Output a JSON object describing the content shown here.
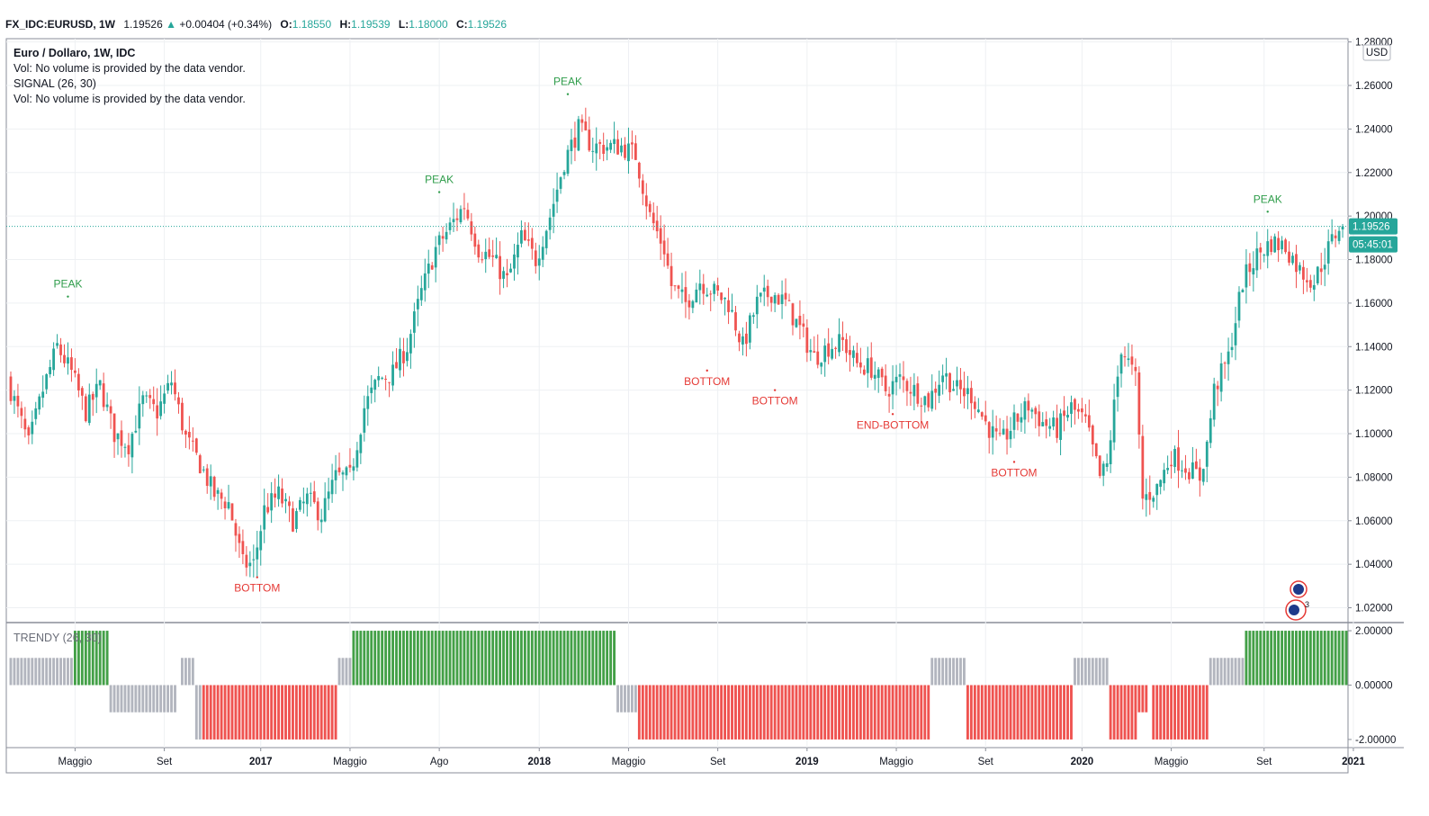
{
  "header": {
    "symbol": "FX_IDC:EURUSD, 1W",
    "last": "1.19526",
    "change": "+0.00404 (+0.34%)",
    "open_label": "O:",
    "open": "1.18550",
    "high_label": "H:",
    "high": "1.19539",
    "low_label": "L:",
    "low": "1.18000",
    "close_label": "C:",
    "close": "1.19526"
  },
  "legend": {
    "title": "Euro / Dollaro, 1W, IDC",
    "vol1": "Vol: No volume is provided by the data vendor.",
    "signal": "SIGNAL (26, 30)",
    "vol2": "Vol: No volume is provided by the data vendor.",
    "trendy": "TRENDY (26, 30)"
  },
  "price_scale": {
    "currency": "USD",
    "last_price_tag": "1.19526",
    "countdown_tag": "05:45:01"
  },
  "colors": {
    "up": "#26a69a",
    "down": "#ef5350",
    "trend_up": "#43a047",
    "trend_down": "#ef5350",
    "neutral": "#b2b5be",
    "peak": "#2e9c4a",
    "bottom": "#e53935"
  },
  "chart_data": [
    {
      "type": "candlestick",
      "title": "Euro / Dollaro, 1W, IDC",
      "ylim": [
        1.0132,
        1.2815
      ],
      "y_ticks": [
        "1.28000",
        "1.26000",
        "1.24000",
        "1.22000",
        "1.20000",
        "1.18000",
        "1.16000",
        "1.14000",
        "1.12000",
        "1.10000",
        "1.08000",
        "1.06000",
        "1.04000",
        "1.02000"
      ],
      "x_ticks": [
        "Maggio",
        "Set",
        "2017",
        "Maggio",
        "Ago",
        "2018",
        "Maggio",
        "Set",
        "2019",
        "Maggio",
        "Set",
        "2020",
        "Maggio",
        "Set",
        "2021"
      ],
      "last_price": 1.19526,
      "n_weeks": 282,
      "anchors": [
        [
          0,
          1.125
        ],
        [
          6,
          1.095
        ],
        [
          10,
          1.12
        ],
        [
          14,
          1.14
        ],
        [
          18,
          1.128
        ],
        [
          22,
          1.11
        ],
        [
          26,
          1.122
        ],
        [
          30,
          1.1
        ],
        [
          34,
          1.095
        ],
        [
          38,
          1.115
        ],
        [
          42,
          1.11
        ],
        [
          46,
          1.124
        ],
        [
          50,
          1.098
        ],
        [
          54,
          1.086
        ],
        [
          58,
          1.072
        ],
        [
          62,
          1.068
        ],
        [
          66,
          1.04
        ],
        [
          69,
          1.04
        ],
        [
          72,
          1.065
        ],
        [
          76,
          1.072
        ],
        [
          80,
          1.06
        ],
        [
          84,
          1.07
        ],
        [
          88,
          1.063
        ],
        [
          92,
          1.08
        ],
        [
          96,
          1.08
        ],
        [
          100,
          1.112
        ],
        [
          104,
          1.125
        ],
        [
          108,
          1.128
        ],
        [
          112,
          1.14
        ],
        [
          116,
          1.165
        ],
        [
          120,
          1.185
        ],
        [
          124,
          1.195
        ],
        [
          128,
          1.205
        ],
        [
          132,
          1.185
        ],
        [
          136,
          1.18
        ],
        [
          140,
          1.17
        ],
        [
          144,
          1.19
        ],
        [
          148,
          1.18
        ],
        [
          152,
          1.2
        ],
        [
          156,
          1.225
        ],
        [
          160,
          1.24
        ],
        [
          164,
          1.232
        ],
        [
          168,
          1.232
        ],
        [
          172,
          1.232
        ],
        [
          176,
          1.228
        ],
        [
          180,
          1.2
        ],
        [
          184,
          1.185
        ],
        [
          186,
          1.168
        ],
        [
          190,
          1.16
        ],
        [
          194,
          1.17
        ],
        [
          198,
          1.165
        ],
        [
          202,
          1.16
        ],
        [
          206,
          1.14
        ],
        [
          210,
          1.16
        ],
        [
          214,
          1.165
        ],
        [
          218,
          1.16
        ],
        [
          222,
          1.148
        ],
        [
          226,
          1.135
        ],
        [
          230,
          1.14
        ],
        [
          234,
          1.142
        ],
        [
          238,
          1.132
        ],
        [
          242,
          1.13
        ],
        [
          246,
          1.12
        ],
        [
          250,
          1.125
        ],
        [
          254,
          1.12
        ],
        [
          258,
          1.115
        ],
        [
          262,
          1.128
        ],
        [
          266,
          1.12
        ],
        [
          270,
          1.118
        ],
        [
          274,
          1.105
        ],
        [
          278,
          1.095
        ],
        [
          282,
          1.105
        ],
        [
          286,
          1.113
        ],
        [
          290,
          1.105
        ],
        [
          294,
          1.102
        ],
        [
          298,
          1.112
        ],
        [
          302,
          1.105
        ],
        [
          306,
          1.08
        ],
        [
          308,
          1.085
        ]
      ],
      "annotations": [
        {
          "text": "PEAK",
          "week": 16,
          "price": 1.163,
          "kind": "peak"
        },
        {
          "text": "BOTTOM",
          "week": 69,
          "price": 1.034,
          "kind": "bottom"
        },
        {
          "text": "PEAK",
          "week": 120,
          "price": 1.211,
          "kind": "peak"
        },
        {
          "text": "PEAK",
          "week": 156,
          "price": 1.256,
          "kind": "peak"
        },
        {
          "text": "BOTTOM",
          "week": 195,
          "price": 1.129,
          "kind": "bottom"
        },
        {
          "text": "BOTTOM",
          "week": 214,
          "price": 1.12,
          "kind": "bottom"
        },
        {
          "text": "END-BOTTOM",
          "week": 247,
          "price": 1.109,
          "kind": "bottom"
        },
        {
          "text": "BOTTOM",
          "week": 281,
          "price": 1.087,
          "kind": "bottom"
        },
        {
          "text": "PEAK",
          "week": 352,
          "price": 1.202,
          "kind": "peak"
        }
      ]
    },
    {
      "type": "bar",
      "title": "TRENDY (26, 30)",
      "ylim": [
        -2.3,
        2.3
      ],
      "y_ticks": [
        "2.00000",
        "0.00000",
        "-2.00000"
      ],
      "segments": [
        {
          "from": 0,
          "to": 17,
          "value": 1,
          "state": "neutral"
        },
        {
          "from": 18,
          "to": 27,
          "value": 2,
          "state": "up"
        },
        {
          "from": 28,
          "to": 46,
          "value": -1,
          "state": "neutral"
        },
        {
          "from": 48,
          "to": 51,
          "value": 1,
          "state": "neutral"
        },
        {
          "from": 52,
          "to": 53,
          "value": -2,
          "state": "neutral"
        },
        {
          "from": 54,
          "to": 91,
          "value": -2,
          "state": "down"
        },
        {
          "from": 92,
          "to": 95,
          "value": 1,
          "state": "neutral"
        },
        {
          "from": 96,
          "to": 169,
          "value": 2,
          "state": "up"
        },
        {
          "from": 170,
          "to": 175,
          "value": -1,
          "state": "neutral"
        },
        {
          "from": 176,
          "to": 257,
          "value": -2,
          "state": "down"
        },
        {
          "from": 258,
          "to": 267,
          "value": 1,
          "state": "neutral"
        },
        {
          "from": 268,
          "to": 297,
          "value": -2,
          "state": "down"
        },
        {
          "from": 298,
          "to": 307,
          "value": 1,
          "state": "neutral"
        },
        {
          "from": 308,
          "to": 315,
          "value": -2,
          "state": "down"
        },
        {
          "from": 316,
          "to": 318,
          "value": -1,
          "state": "down"
        },
        {
          "from": 320,
          "to": 335,
          "value": -2,
          "state": "down"
        },
        {
          "from": 336,
          "to": 345,
          "value": 1,
          "state": "neutral"
        },
        {
          "from": 346,
          "to": 374,
          "value": 2,
          "state": "up"
        }
      ]
    }
  ]
}
